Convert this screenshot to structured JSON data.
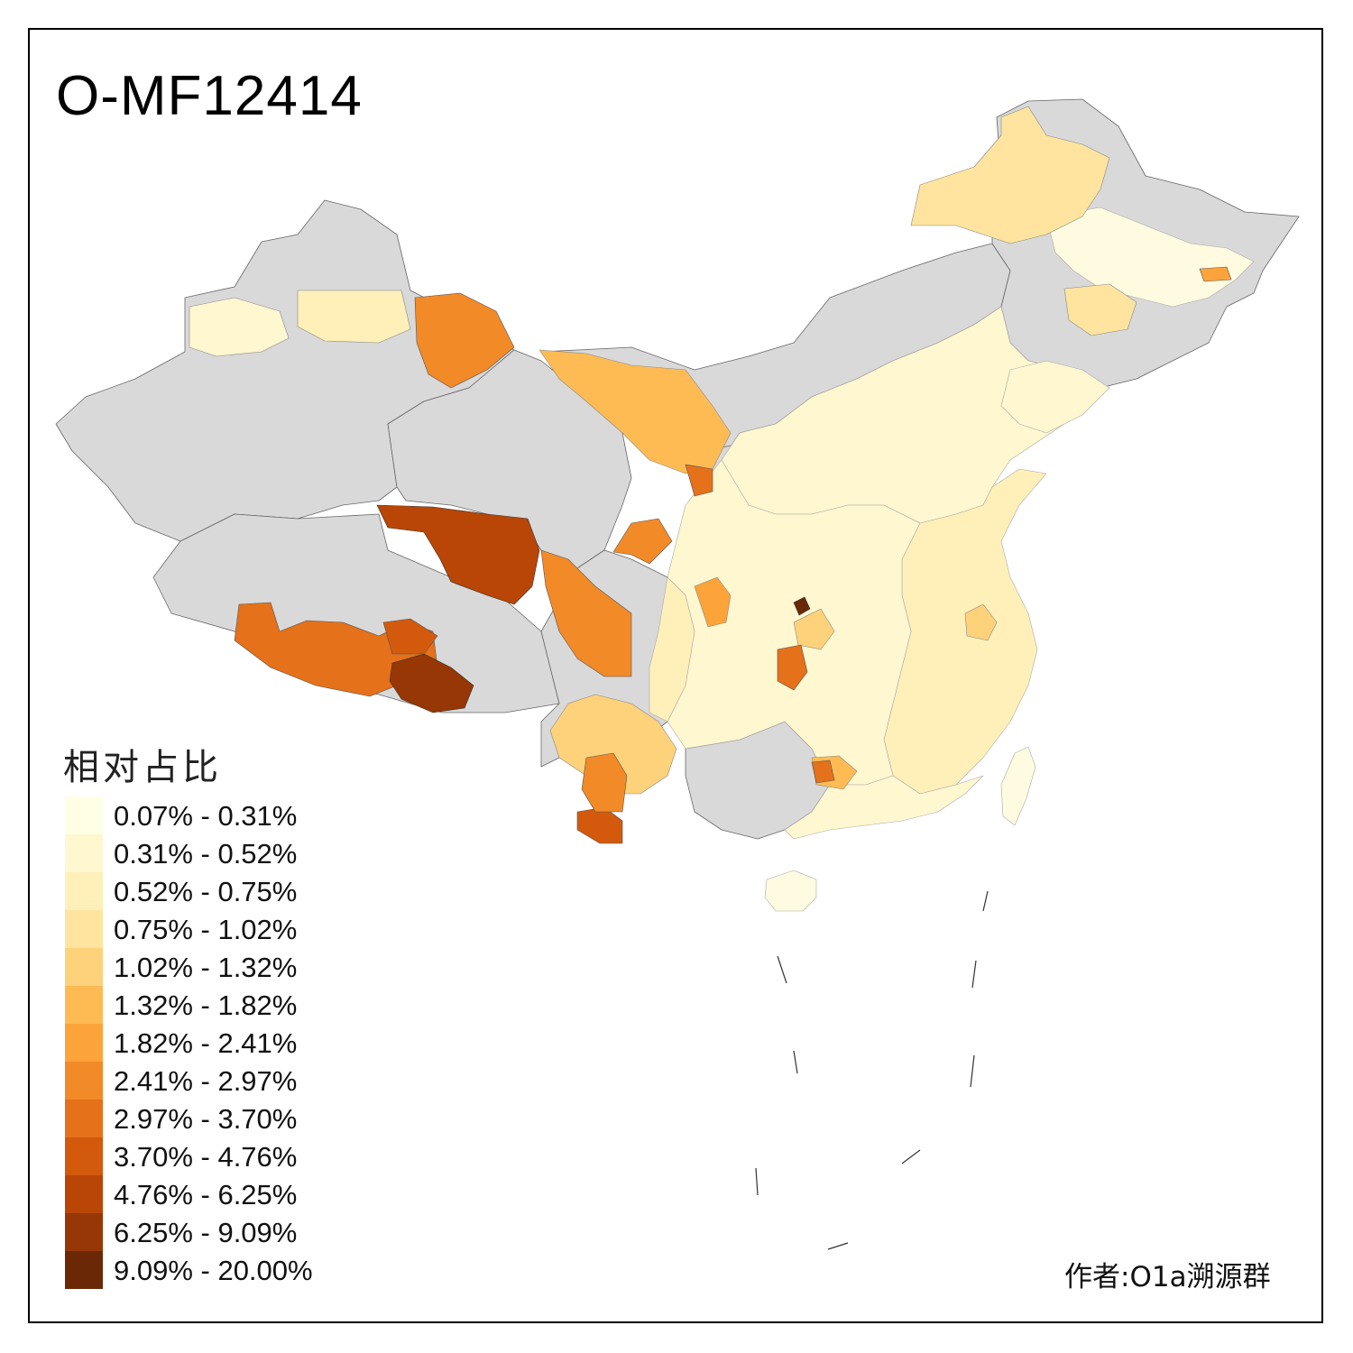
{
  "title": "O-MF12414",
  "legend": {
    "title": "相对占比",
    "bins": [
      {
        "label": "0.07% - 0.31%",
        "color": "#ffffe5"
      },
      {
        "label": "0.31% - 0.52%",
        "color": "#fff7cf"
      },
      {
        "label": "0.52% - 0.75%",
        "color": "#fef0b8"
      },
      {
        "label": "0.75% - 1.02%",
        "color": "#fee49e"
      },
      {
        "label": "1.02% - 1.32%",
        "color": "#fed27a"
      },
      {
        "label": "1.32% - 1.82%",
        "color": "#febb54"
      },
      {
        "label": "1.82% - 2.41%",
        "color": "#fca33a"
      },
      {
        "label": "2.41% - 2.97%",
        "color": "#f28a28"
      },
      {
        "label": "2.97% - 3.70%",
        "color": "#e5711a"
      },
      {
        "label": "3.70% - 4.76%",
        "color": "#d35a0c"
      },
      {
        "label": "4.76% - 6.25%",
        "color": "#b94606"
      },
      {
        "label": "6.25% - 9.09%",
        "color": "#963705"
      },
      {
        "label": "9.09% - 20.00%",
        "color": "#6b2806"
      }
    ]
  },
  "no_data_color": "#d9d9d9",
  "author": "作者:O1a溯源群"
}
